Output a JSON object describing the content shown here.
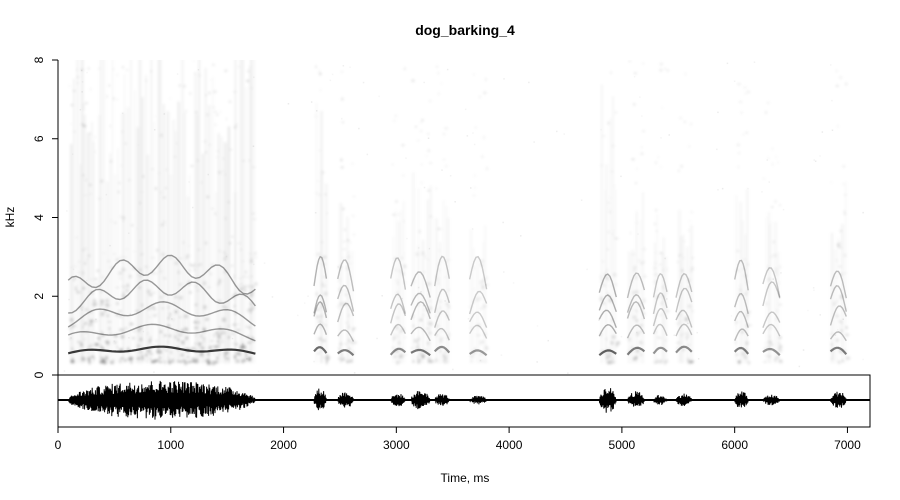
{
  "chart_data": {
    "type": "spectrogram",
    "title": "dog_barking_4",
    "xlabel": "Time, ms",
    "ylabel": "kHz",
    "xlim": [
      0,
      7200
    ],
    "ylim": [
      0,
      8
    ],
    "x_ticks": [
      0,
      1000,
      2000,
      3000,
      4000,
      5000,
      6000,
      7000
    ],
    "y_ticks": [
      0,
      2,
      4,
      6,
      8
    ],
    "colormap": "grayscale",
    "background": "#ffffff",
    "ink_color": "#000000",
    "bark_segments_ms": [
      {
        "start": 90,
        "end": 1750,
        "peak_amplitude": 0.9
      },
      {
        "start": 2270,
        "end": 2380,
        "peak_amplitude": 0.55
      },
      {
        "start": 2480,
        "end": 2620,
        "peak_amplitude": 0.4
      },
      {
        "start": 2950,
        "end": 3080,
        "peak_amplitude": 0.3
      },
      {
        "start": 3130,
        "end": 3300,
        "peak_amplitude": 0.45
      },
      {
        "start": 3340,
        "end": 3470,
        "peak_amplitude": 0.3
      },
      {
        "start": 3650,
        "end": 3800,
        "peak_amplitude": 0.2
      },
      {
        "start": 4800,
        "end": 4950,
        "peak_amplitude": 0.6
      },
      {
        "start": 5050,
        "end": 5200,
        "peak_amplitude": 0.4
      },
      {
        "start": 5280,
        "end": 5400,
        "peak_amplitude": 0.25
      },
      {
        "start": 5480,
        "end": 5620,
        "peak_amplitude": 0.3
      },
      {
        "start": 6000,
        "end": 6120,
        "peak_amplitude": 0.4
      },
      {
        "start": 6250,
        "end": 6400,
        "peak_amplitude": 0.25
      },
      {
        "start": 6850,
        "end": 6990,
        "peak_amplitude": 0.4
      }
    ]
  }
}
